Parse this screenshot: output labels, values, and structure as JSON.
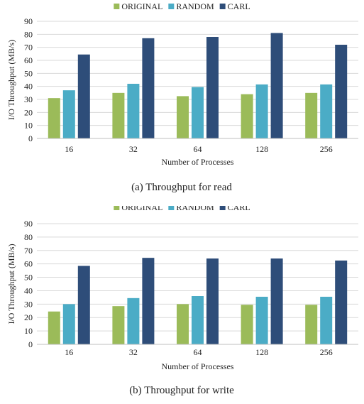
{
  "chart_data": [
    {
      "type": "bar",
      "caption": "(a)  Throughput for read",
      "xlabel": "Number of Processes",
      "ylabel": "I/O Throughput (MB/s)",
      "ylim": [
        0,
        90
      ],
      "yticks": [
        0,
        10,
        20,
        30,
        40,
        50,
        60,
        70,
        80,
        90
      ],
      "grid": true,
      "legend_position": "top-center",
      "categories": [
        "16",
        "32",
        "64",
        "128",
        "256"
      ],
      "series": [
        {
          "name": "ORIGINAL",
          "color": "#9bbb59",
          "values": [
            31,
            35,
            32.5,
            34,
            35
          ]
        },
        {
          "name": "RANDOM",
          "color": "#4bacc6",
          "values": [
            37,
            42,
            39.5,
            41.5,
            41.5
          ]
        },
        {
          "name": "CARL",
          "color": "#2e4d79",
          "values": [
            64.5,
            77,
            78,
            81,
            72
          ]
        }
      ]
    },
    {
      "type": "bar",
      "caption": "(b)  Throughput for write",
      "xlabel": "Number of Processes",
      "ylabel": "I/O Throughput (MB/s)",
      "ylim": [
        0,
        90
      ],
      "yticks": [
        0,
        10,
        20,
        30,
        40,
        50,
        60,
        70,
        80,
        90
      ],
      "grid": true,
      "legend_position": "top-center",
      "categories": [
        "16",
        "32",
        "64",
        "128",
        "256"
      ],
      "series": [
        {
          "name": "ORIGINAL",
          "color": "#9bbb59",
          "values": [
            24.5,
            28.5,
            30,
            29.5,
            29.5
          ]
        },
        {
          "name": "RANDOM",
          "color": "#4bacc6",
          "values": [
            30,
            34.5,
            36,
            35.5,
            35.5
          ]
        },
        {
          "name": "CARL",
          "color": "#2e4d79",
          "values": [
            58.5,
            64.5,
            64,
            64,
            62.5
          ]
        }
      ]
    }
  ]
}
